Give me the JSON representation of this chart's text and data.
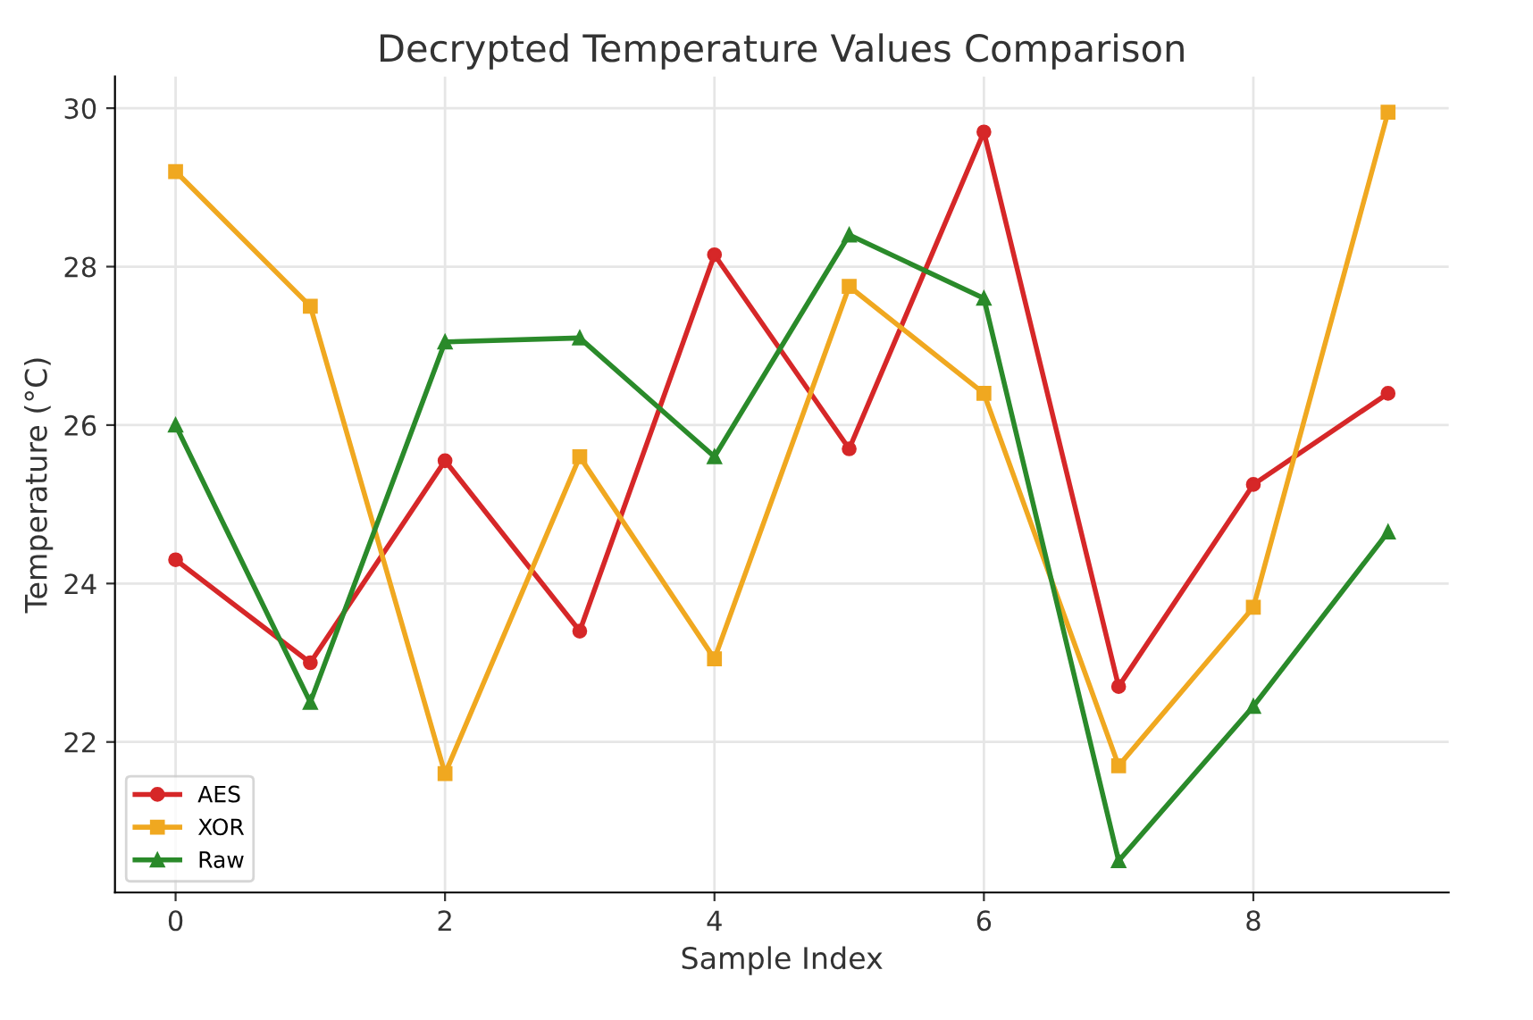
{
  "chart_data": {
    "type": "line",
    "title": "Decrypted Temperature Values Comparison",
    "xlabel": "Sample Index",
    "ylabel": "Temperature (°C)",
    "x": [
      0,
      1,
      2,
      3,
      4,
      5,
      6,
      7,
      8,
      9
    ],
    "series": [
      {
        "name": "AES",
        "color": "#d62728",
        "marker": "circle",
        "values": [
          24.3,
          23.0,
          25.55,
          23.4,
          28.15,
          25.7,
          29.7,
          22.7,
          25.25,
          26.4
        ]
      },
      {
        "name": "XOR",
        "color": "#f0a820",
        "marker": "square",
        "values": [
          29.2,
          27.5,
          21.6,
          25.6,
          23.05,
          27.75,
          26.4,
          21.7,
          23.7,
          29.95
        ]
      },
      {
        "name": "Raw",
        "color": "#2a8a2a",
        "marker": "triangle",
        "values": [
          26.0,
          22.5,
          27.05,
          27.1,
          25.6,
          28.4,
          27.6,
          20.5,
          22.45,
          24.65
        ]
      }
    ],
    "xlim": [
      -0.45,
      9.45
    ],
    "xticks": [
      0,
      2,
      4,
      6,
      8
    ],
    "ylim": [
      20.1,
      30.4
    ],
    "yticks": [
      22,
      24,
      26,
      28,
      30
    ],
    "grid": true,
    "legend": "bottom left",
    "line_style": "solid"
  }
}
